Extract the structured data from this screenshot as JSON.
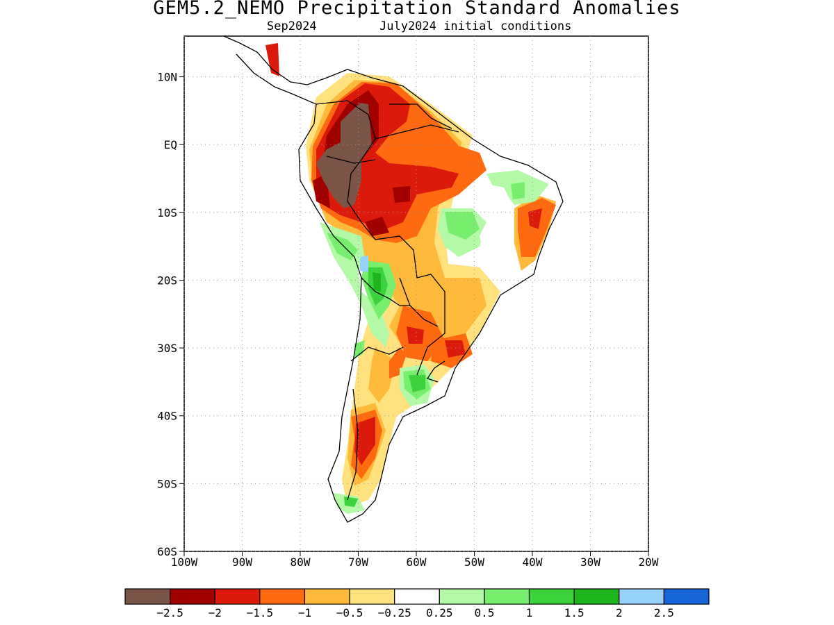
{
  "title": "GEM5.2_NEMO Precipitation Standard Anomalies",
  "subtitle_left": "Sep2024",
  "subtitle_right": "July2024 initial conditions",
  "map": {
    "lat_labels": [
      "10N",
      "EQ",
      "10S",
      "20S",
      "30S",
      "40S",
      "50S",
      "60S"
    ],
    "lat_values": [
      10,
      0,
      -10,
      -20,
      -30,
      -40,
      -50,
      -60
    ],
    "lon_labels": [
      "100W",
      "90W",
      "80W",
      "70W",
      "60W",
      "50W",
      "40W",
      "30W",
      "20W"
    ],
    "lon_values": [
      -100,
      -90,
      -80,
      -70,
      -60,
      -50,
      -40,
      -30,
      -20
    ],
    "lat_range": [
      -60,
      16
    ],
    "lon_range": [
      -100,
      -20
    ],
    "grid": "dotted"
  },
  "colorbar": {
    "colors": [
      "#7a5446",
      "#a10000",
      "#dc1a0c",
      "#ff6a10",
      "#ffba3c",
      "#ffe27e",
      "#ffffff",
      "#b4f9a8",
      "#78ee6e",
      "#3cd23c",
      "#1eb41e",
      "#96d2fa",
      "#1564d8"
    ],
    "labels": [
      "−2.5",
      "−2",
      "−1.5",
      "−1",
      "−0.5",
      "−0.25",
      "0.25",
      "0.5",
      "1",
      "1.5",
      "2",
      "2.5"
    ]
  }
}
